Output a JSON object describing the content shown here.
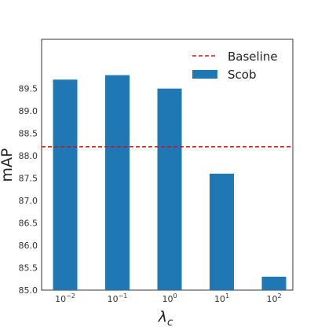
{
  "chart_data": {
    "type": "bar",
    "categories": [
      {
        "base": "10",
        "exp": "−2"
      },
      {
        "base": "10",
        "exp": "−1"
      },
      {
        "base": "10",
        "exp": "0"
      },
      {
        "base": "10",
        "exp": "1"
      },
      {
        "base": "10",
        "exp": "2"
      }
    ],
    "series": [
      {
        "name": "Scob",
        "values": [
          89.7,
          89.8,
          89.5,
          87.6,
          85.3
        ],
        "color": "#1f77b4"
      }
    ],
    "baseline": {
      "name": "Baseline",
      "value": 88.2,
      "color": "#ff0000",
      "style": "dashed"
    },
    "xlabel": {
      "symbol": "λ",
      "subscript": "c"
    },
    "ylabel": "mAP",
    "ylim": [
      85.0,
      90.6
    ],
    "yticks": [
      "85.0",
      "85.5",
      "86.0",
      "86.5",
      "87.0",
      "87.5",
      "88.0",
      "88.5",
      "89.0",
      "89.5"
    ],
    "legend_position": "top-right",
    "grid": false
  }
}
